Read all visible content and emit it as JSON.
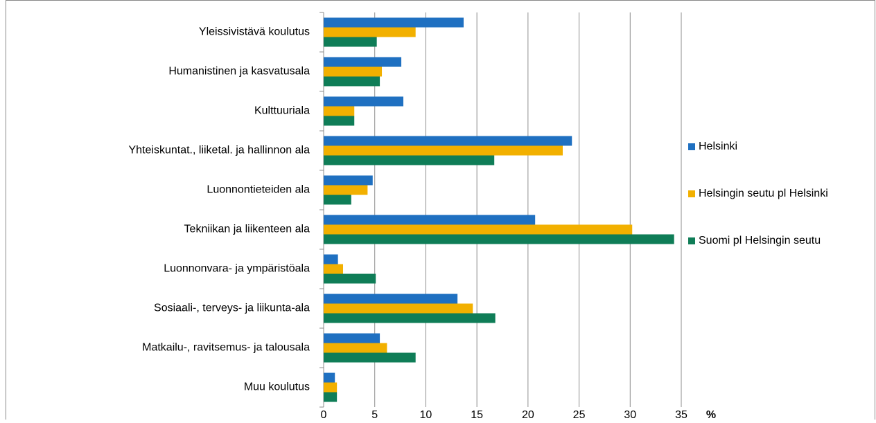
{
  "chart_data": {
    "type": "bar",
    "orientation": "horizontal",
    "categories": [
      "Yleissivistävä koulutus",
      "Humanistinen ja kasvatusala",
      "Kulttuuriala",
      "Yhteiskuntat., liiketal. ja hallinnon ala",
      "Luonnontieteiden ala",
      "Tekniikan ja liikenteen ala",
      "Luonnonvara- ja ympäristöala",
      "Sosiaali-, terveys- ja liikunta-ala",
      "Matkailu-, ravitsemus-  ja talousala",
      "Muu koulutus"
    ],
    "series": [
      {
        "name": "Helsinki",
        "color": "#1f70c1",
        "values": [
          13.7,
          7.6,
          7.8,
          24.3,
          4.8,
          20.7,
          1.4,
          13.1,
          5.5,
          1.1
        ]
      },
      {
        "name": "Helsingin seutu pl Helsinki",
        "color": "#f2b000",
        "values": [
          9.0,
          5.7,
          3.0,
          23.4,
          4.3,
          30.2,
          1.9,
          14.6,
          6.2,
          1.3
        ]
      },
      {
        "name": "Suomi pl Helsingin seutu",
        "color": "#0f7d57",
        "values": [
          5.2,
          5.5,
          3.0,
          16.7,
          2.7,
          34.3,
          5.1,
          16.8,
          9.0,
          1.3
        ]
      }
    ],
    "x_label": "%",
    "xlim": [
      0,
      35
    ],
    "xticks": [
      0,
      5,
      10,
      15,
      20,
      25,
      30,
      35
    ],
    "grid": true,
    "legend": "right"
  }
}
